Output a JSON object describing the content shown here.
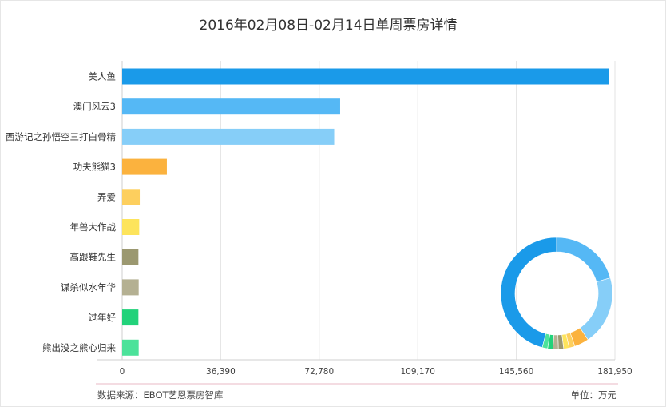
{
  "chart_data": {
    "type": "bar",
    "orientation": "horizontal",
    "title": "2016年02月08日-02月14日单周票房详情",
    "categories": [
      "美人鱼",
      "澳门风云3",
      "西游记之孙悟空三打白骨精",
      "功夫熊猫3",
      "弄爱",
      "年兽大作战",
      "高跟鞋先生",
      "谋杀似水年华",
      "过年好",
      "熊出没之熊心归来"
    ],
    "values": [
      179800,
      80500,
      78300,
      16500,
      6500,
      6300,
      6000,
      6100,
      6000,
      6100
    ],
    "colors": [
      "#1a9ae9",
      "#55b8f5",
      "#86cef8",
      "#fbb23e",
      "#fdcf5e",
      "#fde45c",
      "#9b9870",
      "#b4b092",
      "#22d27a",
      "#4ce29a"
    ],
    "xticks": [
      "0",
      "36,390",
      "72,780",
      "109,170",
      "145,560",
      "181,950"
    ],
    "xlim": [
      0,
      181950
    ],
    "xlabel": "",
    "ylabel": "",
    "grid": true,
    "donut": {
      "type": "pie",
      "style": "donut",
      "values": [
        179800,
        80500,
        78300,
        16500,
        6500,
        6300,
        6000,
        6100,
        6000,
        6100
      ],
      "colors": [
        "#1a9ae9",
        "#55b8f5",
        "#86cef8",
        "#fbb23e",
        "#fdcf5e",
        "#fde45c",
        "#9b9870",
        "#b4b092",
        "#22d27a",
        "#4ce29a"
      ],
      "legend": "none"
    }
  },
  "footer": {
    "source": "数据来源：EBOT艺恩票房智库",
    "unit": "单位：万元"
  }
}
